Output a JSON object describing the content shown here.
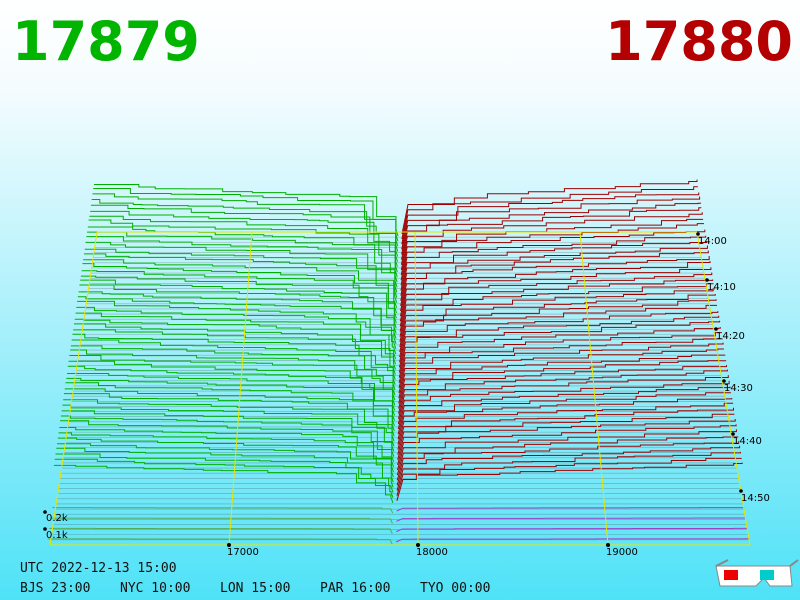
{
  "bid": "17879",
  "ask": "17880",
  "price_axis": [
    "17000",
    "18000",
    "19000"
  ],
  "depth_axis": [
    "0.2k",
    "0.1k"
  ],
  "time_axis": [
    "14:00",
    "14:10",
    "14:20",
    "14:30",
    "14:40",
    "14:50"
  ],
  "footer": {
    "utc": "UTC 2022-12-13 15:00",
    "zones": [
      "BJS 23:00",
      "NYC 10:00",
      "LON 15:00",
      "PAR 16:00",
      "TYO 00:00"
    ]
  }
}
